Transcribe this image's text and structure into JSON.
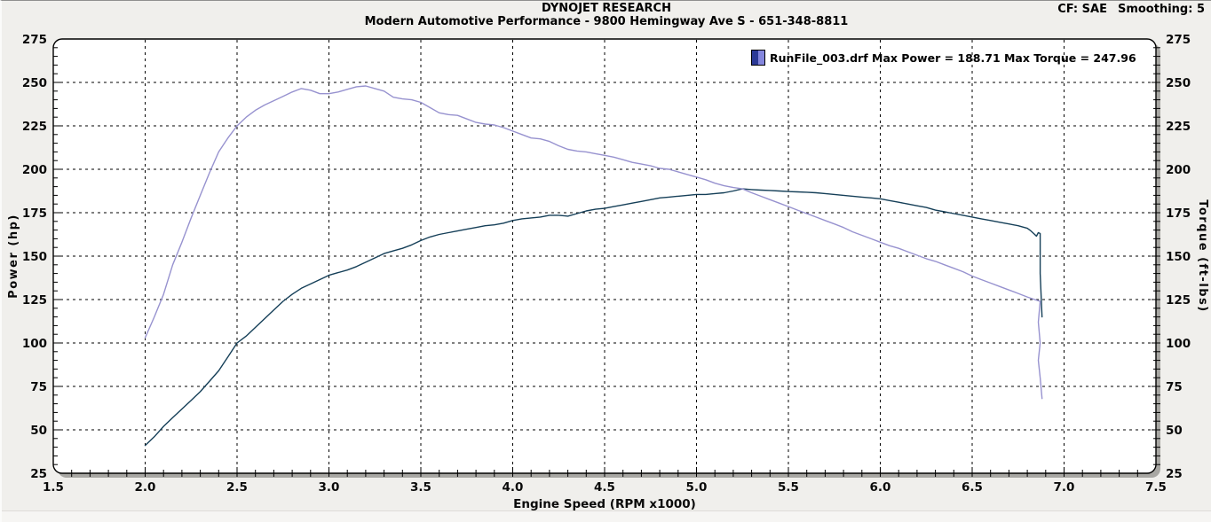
{
  "header": {
    "title": "DYNOJET RESEARCH",
    "subtitle": "Modern Automotive Performance - 9800 Hemingway Ave S - 651-348-8811",
    "cf": "CF: SAE",
    "smoothing": "Smoothing: 5"
  },
  "legend": {
    "text": "RunFile_003.drf Max Power = 188.71 Max Torque = 247.96",
    "icon_left_color": "#2c3a96",
    "icon_right_color": "#8486dd"
  },
  "chart_data": {
    "type": "line",
    "title": "DYNOJET RESEARCH",
    "subtitle": "Modern Automotive Performance - 9800 Hemingway Ave S - 651-348-8811",
    "correction_factor": "SAE",
    "smoothing": 5,
    "run_file": "RunFile_003.drf",
    "max_power_hp": 188.71,
    "max_torque_ftlbs": 247.96,
    "xlabel": "Engine Speed (RPM x1000)",
    "ylabel_left": "Power (hp)",
    "ylabel_right": "Torque (ft-lbs)",
    "xlim": [
      1.5,
      7.5
    ],
    "ylim": [
      25,
      275
    ],
    "x_tick_step": 0.5,
    "x_minor_step": 0.1,
    "y_tick_step": 25,
    "y_minor_step": 5,
    "grid": "dashed black lines at major ticks, both axes",
    "legend_position": "top-right inside plot",
    "plot_background": "#ffffff",
    "page_background": "#f0efec",
    "grid_color": "#000000",
    "series": [
      {
        "name": "Power (hp)",
        "axis": "left",
        "color": "#153f58",
        "points": [
          [
            2.0,
            41
          ],
          [
            2.05,
            46
          ],
          [
            2.1,
            52
          ],
          [
            2.15,
            57
          ],
          [
            2.2,
            62
          ],
          [
            2.25,
            67
          ],
          [
            2.3,
            72
          ],
          [
            2.35,
            78
          ],
          [
            2.4,
            84
          ],
          [
            2.45,
            92
          ],
          [
            2.5,
            100
          ],
          [
            2.55,
            104
          ],
          [
            2.6,
            109
          ],
          [
            2.65,
            114
          ],
          [
            2.7,
            119
          ],
          [
            2.75,
            124
          ],
          [
            2.8,
            128
          ],
          [
            2.85,
            131.5
          ],
          [
            2.9,
            134
          ],
          [
            2.95,
            136.5
          ],
          [
            3.0,
            139
          ],
          [
            3.05,
            140.5
          ],
          [
            3.1,
            142
          ],
          [
            3.15,
            144
          ],
          [
            3.2,
            146.5
          ],
          [
            3.25,
            149
          ],
          [
            3.3,
            151.5
          ],
          [
            3.35,
            153
          ],
          [
            3.4,
            154.5
          ],
          [
            3.45,
            156.5
          ],
          [
            3.5,
            159
          ],
          [
            3.55,
            161
          ],
          [
            3.6,
            162.5
          ],
          [
            3.65,
            163.5
          ],
          [
            3.7,
            164.5
          ],
          [
            3.75,
            165.5
          ],
          [
            3.8,
            166.5
          ],
          [
            3.85,
            167.5
          ],
          [
            3.9,
            168
          ],
          [
            3.95,
            169
          ],
          [
            4.0,
            170.5
          ],
          [
            4.05,
            171.5
          ],
          [
            4.1,
            172
          ],
          [
            4.15,
            172.5
          ],
          [
            4.2,
            173.5
          ],
          [
            4.25,
            173.5
          ],
          [
            4.3,
            173
          ],
          [
            4.35,
            174.5
          ],
          [
            4.4,
            176
          ],
          [
            4.45,
            177
          ],
          [
            4.5,
            177.5
          ],
          [
            4.55,
            178.5
          ],
          [
            4.6,
            179.5
          ],
          [
            4.65,
            180.5
          ],
          [
            4.7,
            181.5
          ],
          [
            4.75,
            182.5
          ],
          [
            4.8,
            183.5
          ],
          [
            4.85,
            184
          ],
          [
            4.9,
            184.5
          ],
          [
            4.95,
            185
          ],
          [
            5.0,
            185.5
          ],
          [
            5.05,
            185.5
          ],
          [
            5.1,
            186
          ],
          [
            5.15,
            186.5
          ],
          [
            5.2,
            187.5
          ],
          [
            5.25,
            188.71
          ],
          [
            5.3,
            188.3
          ],
          [
            5.35,
            188
          ],
          [
            5.4,
            187.8
          ],
          [
            5.45,
            187.5
          ],
          [
            5.5,
            187.2
          ],
          [
            5.55,
            187
          ],
          [
            5.6,
            186.8
          ],
          [
            5.65,
            186.5
          ],
          [
            5.7,
            186
          ],
          [
            5.75,
            185.5
          ],
          [
            5.8,
            185
          ],
          [
            5.85,
            184.5
          ],
          [
            5.9,
            184
          ],
          [
            5.95,
            183.5
          ],
          [
            6.0,
            183
          ],
          [
            6.05,
            182
          ],
          [
            6.1,
            181
          ],
          [
            6.15,
            180
          ],
          [
            6.2,
            179
          ],
          [
            6.25,
            178
          ],
          [
            6.3,
            176.5
          ],
          [
            6.35,
            175.5
          ],
          [
            6.4,
            174.5
          ],
          [
            6.45,
            173.5
          ],
          [
            6.5,
            172.5
          ],
          [
            6.55,
            171.5
          ],
          [
            6.6,
            170.5
          ],
          [
            6.65,
            169.5
          ],
          [
            6.7,
            168.5
          ],
          [
            6.75,
            167.5
          ],
          [
            6.8,
            166
          ],
          [
            6.82,
            164.5
          ],
          [
            6.84,
            162.5
          ],
          [
            6.85,
            161.5
          ],
          [
            6.86,
            163.5
          ],
          [
            6.87,
            163
          ],
          [
            6.87,
            140
          ],
          [
            6.88,
            115
          ]
        ]
      },
      {
        "name": "Torque (ft-lbs)",
        "axis": "right",
        "color": "#9792cf",
        "points": [
          [
            2.0,
            103
          ],
          [
            2.05,
            115
          ],
          [
            2.1,
            128
          ],
          [
            2.15,
            145
          ],
          [
            2.2,
            158
          ],
          [
            2.25,
            172
          ],
          [
            2.3,
            185
          ],
          [
            2.35,
            198
          ],
          [
            2.4,
            210
          ],
          [
            2.45,
            218
          ],
          [
            2.5,
            225
          ],
          [
            2.55,
            230
          ],
          [
            2.6,
            234
          ],
          [
            2.65,
            237
          ],
          [
            2.7,
            239.5
          ],
          [
            2.75,
            242
          ],
          [
            2.8,
            244.5
          ],
          [
            2.85,
            246.5
          ],
          [
            2.9,
            245.5
          ],
          [
            2.95,
            243.5
          ],
          [
            3.0,
            243.5
          ],
          [
            3.05,
            244.5
          ],
          [
            3.1,
            246
          ],
          [
            3.15,
            247.5
          ],
          [
            3.2,
            247.96
          ],
          [
            3.25,
            246.5
          ],
          [
            3.3,
            245
          ],
          [
            3.35,
            241.5
          ],
          [
            3.4,
            240.5
          ],
          [
            3.45,
            240
          ],
          [
            3.5,
            238.5
          ],
          [
            3.55,
            235.5
          ],
          [
            3.6,
            232.5
          ],
          [
            3.65,
            231.5
          ],
          [
            3.7,
            231
          ],
          [
            3.75,
            229
          ],
          [
            3.8,
            227
          ],
          [
            3.85,
            226
          ],
          [
            3.9,
            225.5
          ],
          [
            3.95,
            224
          ],
          [
            4.0,
            222
          ],
          [
            4.05,
            220
          ],
          [
            4.1,
            218
          ],
          [
            4.15,
            217.5
          ],
          [
            4.2,
            216
          ],
          [
            4.25,
            213.5
          ],
          [
            4.3,
            211.5
          ],
          [
            4.35,
            210.5
          ],
          [
            4.4,
            210
          ],
          [
            4.45,
            209
          ],
          [
            4.5,
            208
          ],
          [
            4.55,
            207
          ],
          [
            4.6,
            205.5
          ],
          [
            4.65,
            204
          ],
          [
            4.7,
            203
          ],
          [
            4.75,
            202
          ],
          [
            4.8,
            200.5
          ],
          [
            4.85,
            200
          ],
          [
            4.9,
            198.5
          ],
          [
            4.95,
            197
          ],
          [
            5.0,
            195.5
          ],
          [
            5.05,
            194
          ],
          [
            5.1,
            192
          ],
          [
            5.15,
            190.5
          ],
          [
            5.2,
            189.5
          ],
          [
            5.25,
            188.7
          ],
          [
            5.3,
            186.5
          ],
          [
            5.35,
            184.5
          ],
          [
            5.4,
            182.5
          ],
          [
            5.45,
            180.5
          ],
          [
            5.5,
            178.5
          ],
          [
            5.55,
            176.5
          ],
          [
            5.6,
            174.5
          ],
          [
            5.65,
            172.5
          ],
          [
            5.7,
            170.5
          ],
          [
            5.75,
            168.5
          ],
          [
            5.8,
            166.5
          ],
          [
            5.85,
            164
          ],
          [
            5.9,
            162
          ],
          [
            5.95,
            160
          ],
          [
            6.0,
            158
          ],
          [
            6.05,
            156
          ],
          [
            6.1,
            154.5
          ],
          [
            6.15,
            152.5
          ],
          [
            6.2,
            150.5
          ],
          [
            6.25,
            148.5
          ],
          [
            6.3,
            147
          ],
          [
            6.35,
            145
          ],
          [
            6.4,
            143
          ],
          [
            6.45,
            141
          ],
          [
            6.5,
            138.5
          ],
          [
            6.55,
            136.5
          ],
          [
            6.6,
            134.5
          ],
          [
            6.65,
            132.5
          ],
          [
            6.7,
            130.5
          ],
          [
            6.75,
            128.5
          ],
          [
            6.8,
            126.5
          ],
          [
            6.84,
            125
          ],
          [
            6.87,
            124
          ],
          [
            6.86,
            112
          ],
          [
            6.87,
            100
          ],
          [
            6.86,
            90
          ],
          [
            6.87,
            80
          ],
          [
            6.88,
            68
          ]
        ]
      }
    ]
  }
}
